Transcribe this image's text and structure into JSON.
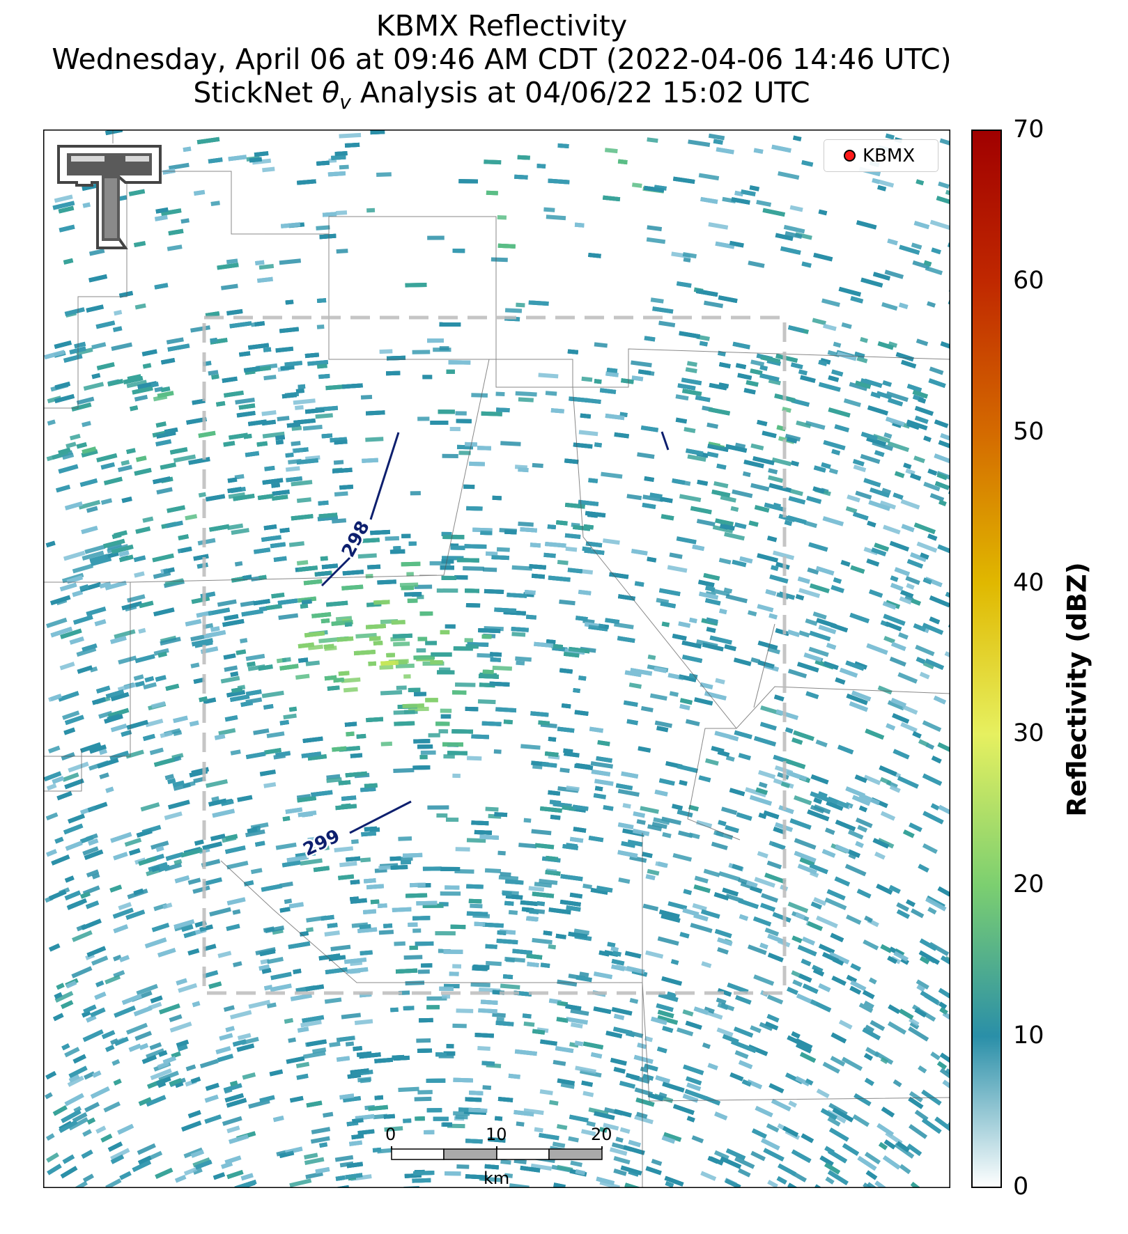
{
  "title": {
    "line1": "KBMX Reflectivity",
    "line2": "Wednesday, April 06 at 09:46 AM CDT (2022-04-06 14:46 UTC)",
    "line3": "StickNet θv Analysis at 04/06/22 15:02 UTC"
  },
  "legend": {
    "label": "KBMX",
    "marker_color": "#ff0000"
  },
  "colorbar": {
    "label": "Reflectivity (dBZ)",
    "ticks": [
      "0",
      "10",
      "20",
      "30",
      "40",
      "50",
      "60",
      "70"
    ],
    "min": 0,
    "max": 70,
    "stops": [
      {
        "value": 0,
        "color": "#ffffff"
      },
      {
        "value": 10,
        "color": "#2a8fa8"
      },
      {
        "value": 20,
        "color": "#7ccf70"
      },
      {
        "value": 30,
        "color": "#e6f060"
      },
      {
        "value": 40,
        "color": "#e0b800"
      },
      {
        "value": 50,
        "color": "#d46a00"
      },
      {
        "value": 60,
        "color": "#c02800"
      },
      {
        "value": 70,
        "color": "#a00000"
      }
    ]
  },
  "contours": [
    {
      "label": "298"
    },
    {
      "label": "299"
    }
  ],
  "scale_bar": {
    "ticks": [
      "0",
      "10",
      "20"
    ],
    "unit": "km"
  },
  "logo": {
    "name": "texas-tech-double-t-logo"
  }
}
